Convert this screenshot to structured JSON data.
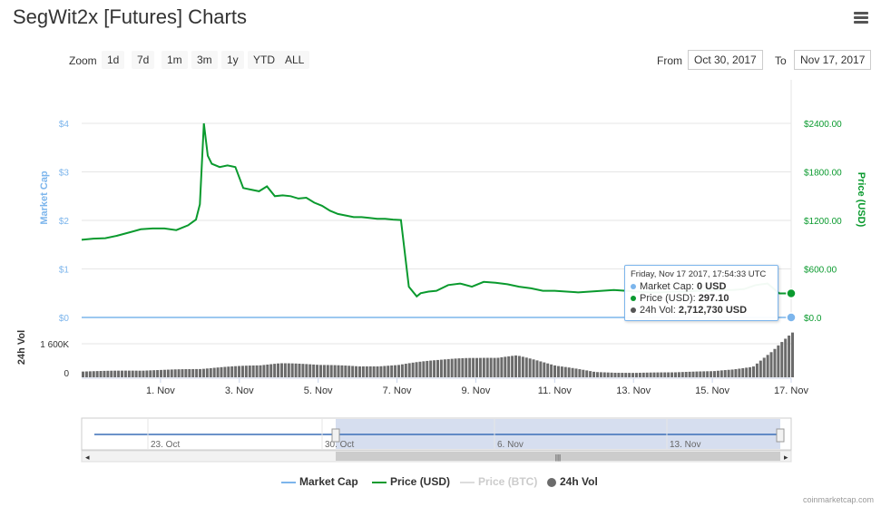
{
  "header": {
    "title": "SegWit2x [Futures] Charts",
    "menu_icon": "hamburger-menu-icon"
  },
  "toolbar": {
    "zoom_label": "Zoom",
    "zoom_buttons": [
      "1d",
      "7d",
      "1m",
      "3m",
      "1y",
      "YTD",
      "ALL"
    ],
    "from_label": "From",
    "from_value": "Oct 30, 2017",
    "to_label": "To",
    "to_value": "Nov 17, 2017"
  },
  "tooltip": {
    "timestamp": "Friday, Nov 17 2017, 17:54:33 UTC",
    "market_cap_label": "Market Cap:",
    "market_cap_value": "0 USD",
    "price_label": "Price (USD):",
    "price_value": "297.10",
    "vol_label": "24h Vol:",
    "vol_value": "2,712,730 USD"
  },
  "legend": {
    "market_cap": "Market Cap",
    "price_usd": "Price (USD)",
    "price_btc": "Price (BTC)",
    "vol": "24h Vol"
  },
  "credit": "coinmarketcap.com",
  "colors": {
    "market_cap": "#7cb5ec",
    "price_usd": "#0a9a2e",
    "price_btc": "#cccccc",
    "volume": "#6b6b6b",
    "navigator_mask": "#ccd6eb"
  },
  "chart_data": {
    "type": "line",
    "x_range": [
      "2017-10-30",
      "2017-11-17"
    ],
    "x_ticks": [
      "1. Nov",
      "3. Nov",
      "5. Nov",
      "7. Nov",
      "9. Nov",
      "11. Nov",
      "13. Nov",
      "15. Nov",
      "17. Nov"
    ],
    "left_axis": {
      "label": "Market Cap",
      "ticks": [
        "$0",
        "$1",
        "$2",
        "$3",
        "$4"
      ],
      "ylim": [
        0,
        4
      ]
    },
    "right_axis": {
      "label": "Price (USD)",
      "ticks": [
        "$0.0",
        "$600.00",
        "$1200.00",
        "$1800.00",
        "$2400.00"
      ],
      "ylim": [
        0,
        2400
      ]
    },
    "volume_axis": {
      "label": "24h Vol",
      "ticks": [
        "0",
        "1 600K"
      ],
      "ylim": [
        0,
        1600000
      ]
    },
    "series": [
      {
        "name": "Price (USD)",
        "x": [
          0,
          0.3,
          0.6,
          0.9,
          1.2,
          1.5,
          1.8,
          2.1,
          2.4,
          2.7,
          2.9,
          3.0,
          3.1,
          3.2,
          3.3,
          3.5,
          3.7,
          3.9,
          4.1,
          4.3,
          4.5,
          4.7,
          4.9,
          5.1,
          5.3,
          5.5,
          5.7,
          5.9,
          6.1,
          6.3,
          6.5,
          6.7,
          6.9,
          7.1,
          7.3,
          7.5,
          7.7,
          7.9,
          8.1,
          8.3,
          8.5,
          8.6,
          8.8,
          9.0,
          9.3,
          9.6,
          9.9,
          10.2,
          10.5,
          10.8,
          11.1,
          11.4,
          11.7,
          12.0,
          12.3,
          12.6,
          12.9,
          13.2,
          13.5,
          13.8,
          14.1,
          14.4,
          14.7,
          15.0,
          15.3,
          15.6,
          15.9,
          16.2,
          16.5,
          16.8,
          17.1,
          17.4,
          17.7,
          18.0
        ],
        "values": [
          960,
          975,
          980,
          1010,
          1050,
          1090,
          1100,
          1100,
          1080,
          1140,
          1210,
          1400,
          2400,
          2000,
          1900,
          1860,
          1880,
          1860,
          1600,
          1580,
          1560,
          1620,
          1500,
          1510,
          1500,
          1470,
          1480,
          1420,
          1380,
          1320,
          1280,
          1260,
          1240,
          1240,
          1230,
          1220,
          1220,
          1210,
          1205,
          380,
          260,
          300,
          320,
          330,
          400,
          420,
          380,
          440,
          430,
          410,
          380,
          360,
          330,
          330,
          320,
          310,
          320,
          330,
          340,
          330,
          320,
          310,
          310,
          320,
          320,
          330,
          330,
          340,
          340,
          350,
          400,
          420,
          297,
          297
        ]
      },
      {
        "name": "Market Cap",
        "x": [
          0,
          18
        ],
        "values": [
          0,
          0
        ]
      },
      {
        "name": "24h Vol",
        "x": [
          0,
          1,
          2,
          3,
          4,
          5,
          6,
          7,
          8,
          9,
          10,
          11,
          12,
          13,
          14,
          15,
          16,
          17,
          17.5,
          18
        ],
        "values": [
          350000,
          380000,
          420000,
          500000,
          650000,
          800000,
          750000,
          620000,
          700000,
          1050000,
          1100000,
          1250000,
          700000,
          300000,
          250000,
          300000,
          350000,
          600000,
          1500000,
          2712730
        ]
      }
    ],
    "navigator": {
      "ticks": [
        "23. Oct",
        "30. Oct",
        "6. Nov",
        "13. Nov"
      ],
      "selected_range": [
        "Oct 30, 2017",
        "Nov 17, 2017"
      ]
    }
  }
}
